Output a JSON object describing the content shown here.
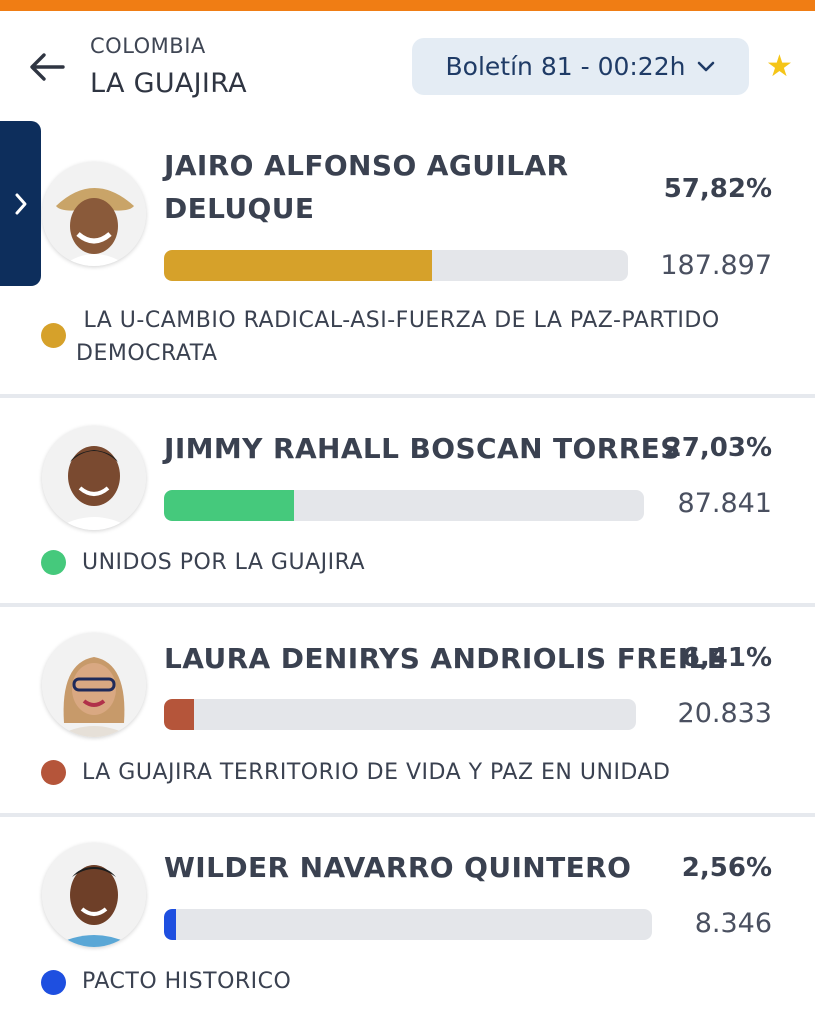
{
  "header": {
    "country": "COLOMBIA",
    "region": "LA GUAJIRA",
    "bulletin": "Boletín 81 - 00:22h"
  },
  "icons": {
    "back": "arrow-left-icon",
    "dropdown": "chevron-down-icon",
    "favorite": "star-icon",
    "expand": "chevron-right-icon"
  },
  "colors": {
    "topbar": "#f07d14",
    "side_tab": "#0d2e5c",
    "star": "#f5c518"
  },
  "candidates": [
    {
      "name_line1": "JAIRO ALFONSO AGUILAR",
      "name_line2": "DELUQUE",
      "percent": "57,82%",
      "percent_value": 57.82,
      "votes": "187.897",
      "party_line1": " LA U-CAMBIO RADICAL-ASI-FUERZA DE LA PAZ-PARTIDO",
      "party_line2": "DEMOCRATA",
      "color": "#d6a12a"
    },
    {
      "name_line1": "JIMMY RAHALL BOSCAN TORRES",
      "percent": "27,03%",
      "percent_value": 27.03,
      "votes": "87.841",
      "party_line1": "UNIDOS POR LA GUAJIRA",
      "color": "#45c97c"
    },
    {
      "name_line1": "LAURA DENIRYS ANDRIOLIS FREILE",
      "percent": "6,41%",
      "percent_value": 6.41,
      "votes": "20.833",
      "party_line1": "LA GUAJIRA TERRITORIO DE VIDA Y PAZ EN UNIDAD",
      "color": "#b5553a"
    },
    {
      "name_line1": "WILDER NAVARRO QUINTERO",
      "percent": "2,56%",
      "percent_value": 2.56,
      "votes": "8.346",
      "party_line1": "PACTO HISTORICO",
      "color": "#1e4fe0"
    }
  ]
}
